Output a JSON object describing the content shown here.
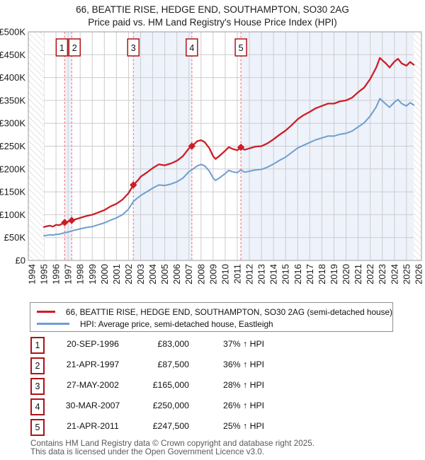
{
  "title": {
    "line1": "66, BEATTIE RISE, HEDGE END, SOUTHAMPTON, SO30 2AG",
    "line2": "Price paid vs. HM Land Registry's House Price Index (HPI)"
  },
  "chart_data": {
    "type": "line",
    "title": "66, BEATTIE RISE, HEDGE END, SOUTHAMPTON, SO30 2AG — Price paid vs. HPI",
    "xlabel": "Year",
    "ylabel": "Price (GBP)",
    "xlim": [
      1993.71,
      2026.24
    ],
    "ylim": [
      0,
      500000
    ],
    "grid": true,
    "y_ticks": [
      "£0",
      "£50K",
      "£100K",
      "£150K",
      "£200K",
      "£250K",
      "£300K",
      "£350K",
      "£400K",
      "£450K",
      "£500K"
    ],
    "y_tick_values": [
      0,
      50000,
      100000,
      150000,
      200000,
      250000,
      300000,
      350000,
      400000,
      450000,
      500000
    ],
    "x_ticks": [
      1994,
      1995,
      1996,
      1997,
      1998,
      1999,
      2000,
      2001,
      2002,
      2003,
      2004,
      2005,
      2006,
      2007,
      2008,
      2009,
      2010,
      2011,
      2012,
      2013,
      2014,
      2015,
      2016,
      2017,
      2018,
      2019,
      2020,
      2021,
      2022,
      2023,
      2024,
      2025,
      2026
    ],
    "x": [
      1995,
      1995.25,
      1995.5,
      1995.75,
      1996,
      1996.25,
      1996.5,
      1996.72,
      1997,
      1997.3,
      1997.5,
      1998,
      1998.5,
      1999,
      1999.5,
      2000,
      2000.5,
      2001,
      2001.5,
      2002,
      2002.4,
      2002.8,
      2003,
      2003.5,
      2004,
      2004.5,
      2005,
      2005.5,
      2006,
      2006.5,
      2007,
      2007.24,
      2007.7,
      2008,
      2008.3,
      2008.7,
      2009,
      2009.2,
      2009.5,
      2010,
      2010.3,
      2010.6,
      2011,
      2011.3,
      2011.6,
      2012,
      2012.5,
      2013,
      2013.5,
      2014,
      2014.5,
      2015,
      2015.5,
      2016,
      2016.5,
      2017,
      2017.5,
      2018,
      2018.5,
      2019,
      2019.5,
      2020,
      2020.5,
      2021,
      2021.5,
      2022,
      2022.5,
      2022.8,
      2023,
      2023.3,
      2023.6,
      2024,
      2024.3,
      2024.6,
      2025,
      2025.3,
      2025.6
    ],
    "series": [
      {
        "name": "66, BEATTIE RISE, HEDGE END, SOUTHAMPTON, SO30 2AG (semi-detached house)",
        "color": "#cc1e26",
        "values": [
          73000,
          75000,
          76000,
          74000,
          78000,
          77000,
          80000,
          83000,
          85000,
          87500,
          89000,
          93000,
          97000,
          100000,
          105000,
          110000,
          118000,
          124000,
          133000,
          147000,
          165000,
          176000,
          183000,
          192000,
          202000,
          210000,
          208000,
          212000,
          218000,
          228000,
          245000,
          250000,
          261000,
          263000,
          259000,
          245000,
          228000,
          222000,
          228000,
          240000,
          248000,
          244000,
          241000,
          247500,
          242000,
          245000,
          249000,
          250000,
          256000,
          265000,
          275000,
          284000,
          296000,
          309000,
          318000,
          325000,
          333000,
          338000,
          343000,
          343000,
          348000,
          350000,
          356000,
          368000,
          378000,
          397000,
          422000,
          443000,
          438000,
          431000,
          422000,
          435000,
          441000,
          431000,
          426000,
          434000,
          428000
        ]
      },
      {
        "name": "HPI: Average price, semi-detached house, Eastleigh",
        "color": "#6e9ecf",
        "values": [
          54000,
          55000,
          56000,
          55500,
          57000,
          57500,
          59000,
          60500,
          62000,
          64500,
          66000,
          69000,
          72000,
          74000,
          78000,
          82000,
          88000,
          93000,
          100000,
          112000,
          129000,
          138000,
          142000,
          150000,
          158000,
          165000,
          164000,
          167000,
          172000,
          180000,
          194000,
          198000,
          207000,
          210000,
          207000,
          195000,
          180000,
          175000,
          180000,
          190000,
          197000,
          194000,
          192000,
          198000,
          193000,
          195000,
          198000,
          199000,
          204000,
          211000,
          219000,
          226000,
          236000,
          246000,
          252000,
          258000,
          264000,
          268000,
          272000,
          272000,
          276000,
          278000,
          283000,
          292000,
          301000,
          316000,
          336000,
          354000,
          349000,
          342000,
          335000,
          346000,
          352000,
          343000,
          338000,
          345000,
          340000
        ]
      }
    ],
    "sales": [
      {
        "num": "1",
        "year": 1996.72,
        "price": 83000,
        "box_dx": -4
      },
      {
        "num": "2",
        "year": 1997.3,
        "price": 87500,
        "box_dx": 4
      },
      {
        "num": "3",
        "year": 2002.4,
        "price": 165000,
        "box_dx": 0
      },
      {
        "num": "4",
        "year": 2007.24,
        "price": 250000,
        "box_dx": 0
      },
      {
        "num": "5",
        "year": 2011.3,
        "price": 247500,
        "box_dx": 0
      }
    ],
    "shaded_bands": [
      [
        1996.72,
        1997.3
      ],
      [
        2002.4,
        2007.24
      ],
      [
        2011.3,
        2025.6
      ]
    ],
    "hatch_left": [
      1993.71,
      1995.0
    ],
    "hatch_right": [
      2025.6,
      2026.24
    ],
    "colors": {
      "property": "#cc1e26",
      "hpi": "#6e9ecf",
      "band": "#eef2fb",
      "grid": "#cccccc",
      "border": "#999999",
      "hatch": "#c9c9ce",
      "dash": "#f28080",
      "marker_box_border": "#b01116"
    },
    "legend_position": "bottom"
  },
  "legend": [
    {
      "label": "66, BEATTIE RISE, HEDGE END, SOUTHAMPTON, SO30 2AG (semi-detached house)",
      "color": "#cc1e26"
    },
    {
      "label": "HPI: Average price, semi-detached house, Eastleigh",
      "color": "#6e9ecf"
    }
  ],
  "table": {
    "rows": [
      {
        "num": "1",
        "date": "20-SEP-1996",
        "price": "£83,000",
        "hpi": "37% ↑ HPI"
      },
      {
        "num": "2",
        "date": "21-APR-1997",
        "price": "£87,500",
        "hpi": "36% ↑ HPI"
      },
      {
        "num": "3",
        "date": "27-MAY-2002",
        "price": "£165,000",
        "hpi": "28% ↑ HPI"
      },
      {
        "num": "4",
        "date": "30-MAR-2007",
        "price": "£250,000",
        "hpi": "26% ↑ HPI"
      },
      {
        "num": "5",
        "date": "21-APR-2011",
        "price": "£247,500",
        "hpi": "25% ↑ HPI"
      }
    ]
  },
  "footer": {
    "line1": "Contains HM Land Registry data © Crown copyright and database right 2025.",
    "line2": "This data is licensed under the Open Government Licence v3.0."
  }
}
